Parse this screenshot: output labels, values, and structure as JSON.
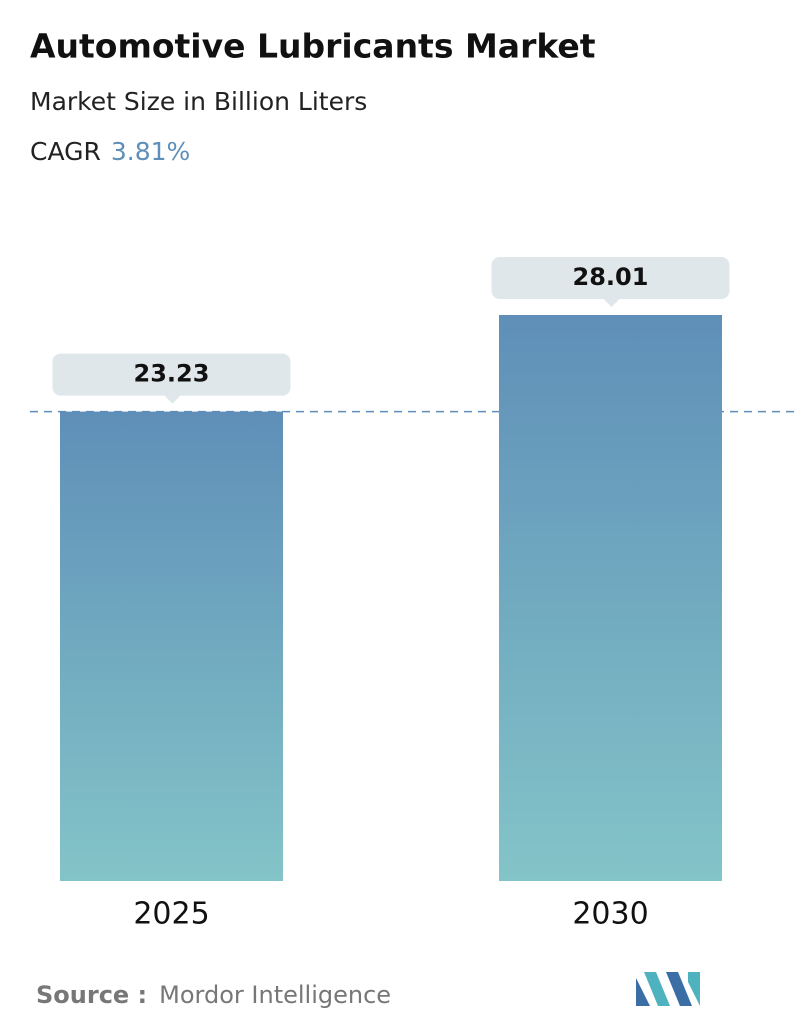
{
  "chart_data": {
    "type": "bar",
    "title": "Automotive Lubricants Market",
    "subtitle": "Market Size in Billion Liters",
    "cagr_label": "CAGR",
    "cagr_value": "3.81%",
    "categories": [
      "2025",
      "2030"
    ],
    "values": [
      23.23,
      28.01
    ],
    "colors": [
      "#5f8fb8",
      "#83c4c8"
    ],
    "reference_line": true,
    "source_label": "Source :",
    "source": "Mordor Intelligence"
  }
}
